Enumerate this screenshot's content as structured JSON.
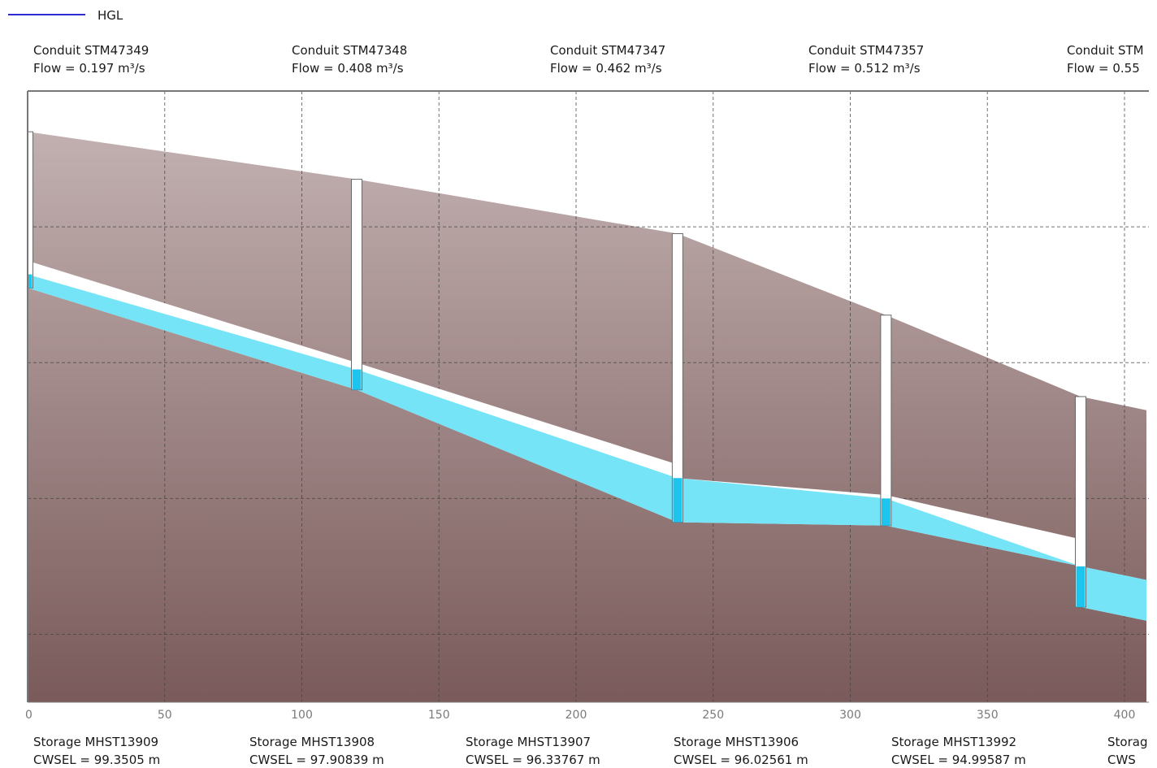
{
  "legend": {
    "label": "HGL",
    "color": "#2c2cd0"
  },
  "colors": {
    "ground_top": "#c2b0b0",
    "ground_bottom": "#7a5a5a",
    "water": "#74e4f6",
    "water_in_manhole": "#1cc4ee",
    "pipe": "#ffffff",
    "grid": "#444444",
    "axis": "#777777"
  },
  "chart_data": {
    "type": "profile",
    "xlabel": "",
    "ylabel": "",
    "xlim": [
      0,
      408
    ],
    "ylim": [
      0,
      9
    ],
    "x_ticks": [
      0,
      50,
      100,
      150,
      200,
      250,
      300,
      350,
      400
    ],
    "grid": true,
    "legend_position": "top-left",
    "conduits": [
      {
        "label": "Conduit STM47349",
        "flow": "Flow = 0.197 m³/s",
        "from_x": 0,
        "to_x": 120
      },
      {
        "label": "Conduit STM47348",
        "flow": "Flow = 0.408 m³/s",
        "from_x": 120,
        "to_x": 237
      },
      {
        "label": "Conduit STM47347",
        "flow": "Flow = 0.462 m³/s",
        "from_x": 237,
        "to_x": 313
      },
      {
        "label": "Conduit STM47357",
        "flow": "Flow = 0.512 m³/s",
        "from_x": 313,
        "to_x": 384
      },
      {
        "label": "Conduit STM",
        "flow": "Flow = 0.55",
        "from_x": 384,
        "to_x": 408
      }
    ],
    "storages": [
      {
        "label": "Storage MHST13909",
        "cwsel": "CWSEL = 99.3505 m"
      },
      {
        "label": "Storage MHST13908",
        "cwsel": "CWSEL = 97.90839 m"
      },
      {
        "label": "Storage MHST13907",
        "cwsel": "CWSEL = 96.33767 m"
      },
      {
        "label": "Storage MHST13906",
        "cwsel": "CWSEL = 96.02561 m"
      },
      {
        "label": "Storage MHST13992",
        "cwsel": "CWSEL = 94.99587 m"
      },
      {
        "label": "Storag",
        "cwsel": "CWS"
      }
    ],
    "ground": {
      "x": [
        0,
        120,
        237,
        313,
        384,
        408
      ],
      "y": [
        8.4,
        7.7,
        6.9,
        5.7,
        4.5,
        4.3
      ]
    },
    "manholes": [
      {
        "x": 0,
        "rim": 8.4,
        "invert": 6.1,
        "water": 6.3
      },
      {
        "x": 120,
        "rim": 7.7,
        "invert": 4.6,
        "water": 4.9
      },
      {
        "x": 237,
        "rim": 6.9,
        "invert": 2.65,
        "water": 3.3
      },
      {
        "x": 313,
        "rim": 5.7,
        "invert": 2.6,
        "water": 3.0
      },
      {
        "x": 384,
        "rim": 4.5,
        "invert": 1.4,
        "water": 2.0
      }
    ],
    "pipes": [
      {
        "x1": 0,
        "x2": 120,
        "invert1": 6.1,
        "invert2": 4.6,
        "crown1": 6.5,
        "crown2": 5.0,
        "water1": 6.3,
        "water2": 4.9
      },
      {
        "x1": 120,
        "x2": 237,
        "invert1": 4.6,
        "invert2": 2.65,
        "crown1": 5.0,
        "crown2": 3.5,
        "water1": 4.9,
        "water2": 3.3
      },
      {
        "x1": 237,
        "x2": 313,
        "invert1": 2.65,
        "invert2": 2.6,
        "crown1": 3.3,
        "crown2": 3.05,
        "water1": 3.3,
        "water2": 3.0
      },
      {
        "x1": 313,
        "x2": 384,
        "invert1": 2.6,
        "invert2": 2.0,
        "crown1": 3.05,
        "crown2": 2.4,
        "water1": 3.0,
        "water2": 2.0
      },
      {
        "x1": 384,
        "x2": 408,
        "invert1": 1.4,
        "invert2": 1.2,
        "crown1": 2.0,
        "crown2": 1.8,
        "water1": 2.0,
        "water2": 1.8
      }
    ]
  }
}
